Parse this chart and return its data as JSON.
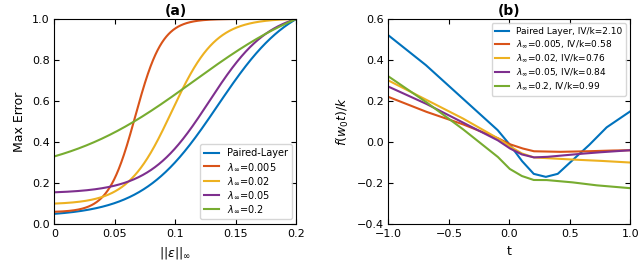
{
  "panel_a": {
    "title": "(a)",
    "xlabel": "$||\\epsilon||_\\infty$",
    "ylabel": "Max Error",
    "xlim": [
      0,
      0.2
    ],
    "ylim": [
      0,
      1.0
    ],
    "xticks": [
      0,
      0.05,
      0.1,
      0.15,
      0.2
    ],
    "yticks": [
      0,
      0.2,
      0.4,
      0.6,
      0.8,
      1.0
    ],
    "lines": [
      {
        "label": "Paired-Layer",
        "color": "#0072BD",
        "shift": 0.135,
        "steepness": 32,
        "ystart": 0.05,
        "yend": 1.0
      },
      {
        "label": "$\\lambda_\\infty$=0.005",
        "color": "#D95319",
        "shift": 0.067,
        "steepness": 90,
        "ystart": 0.06,
        "yend": 1.0
      },
      {
        "label": "$\\lambda_\\infty$=0.02",
        "color": "#EDB120",
        "shift": 0.097,
        "steepness": 55,
        "ystart": 0.1,
        "yend": 1.0
      },
      {
        "label": "$\\lambda_\\infty$=0.05",
        "color": "#7E2F8E",
        "shift": 0.128,
        "steepness": 40,
        "ystart": 0.155,
        "yend": 1.0
      },
      {
        "label": "$\\lambda_\\infty$=0.2",
        "color": "#77AC30",
        "shift": 0.115,
        "steepness": 18,
        "ystart": 0.33,
        "yend": 1.0
      }
    ]
  },
  "panel_b": {
    "title": "(b)",
    "xlabel": "t",
    "ylabel": "$f(w_0 t)/k$",
    "xlim": [
      -1,
      1
    ],
    "ylim": [
      -0.4,
      0.6
    ],
    "xticks": [
      -1,
      -0.5,
      0,
      0.5,
      1
    ],
    "yticks": [
      -0.4,
      -0.2,
      0,
      0.2,
      0.4,
      0.6
    ],
    "lines": [
      {
        "label": "Paired Layer, IV/k=2.10",
        "color": "#0072BD",
        "id": 0,
        "t_pts": [
          -1.0,
          -0.7,
          -0.4,
          -0.1,
          0.0,
          0.1,
          0.2,
          0.3,
          0.4,
          0.5,
          0.65,
          0.8,
          1.0
        ],
        "y_pts": [
          0.52,
          0.38,
          0.22,
          0.06,
          -0.01,
          -0.09,
          -0.155,
          -0.17,
          -0.155,
          -0.1,
          -0.02,
          0.07,
          0.15
        ]
      },
      {
        "label": "$\\lambda_\\infty$=0.005, IV/k=0.58",
        "color": "#D95319",
        "id": 1,
        "t_pts": [
          -1.0,
          -0.7,
          -0.4,
          -0.1,
          0.0,
          0.1,
          0.2,
          0.4,
          0.6,
          0.8,
          1.0
        ],
        "y_pts": [
          0.22,
          0.15,
          0.09,
          0.02,
          -0.01,
          -0.03,
          -0.045,
          -0.048,
          -0.046,
          -0.042,
          -0.04
        ]
      },
      {
        "label": "$\\lambda_\\infty$=0.02, IV/k=0.76",
        "color": "#EDB120",
        "id": 2,
        "t_pts": [
          -1.0,
          -0.7,
          -0.4,
          -0.1,
          0.0,
          0.1,
          0.2,
          0.3,
          0.5,
          0.7,
          1.0
        ],
        "y_pts": [
          0.3,
          0.21,
          0.12,
          0.02,
          -0.02,
          -0.055,
          -0.075,
          -0.078,
          -0.085,
          -0.09,
          -0.1
        ]
      },
      {
        "label": "$\\lambda_\\infty$=0.05, IV/k=0.84",
        "color": "#7E2F8E",
        "id": 3,
        "t_pts": [
          -1.0,
          -0.7,
          -0.4,
          -0.1,
          0.0,
          0.1,
          0.2,
          0.3,
          0.5,
          0.7,
          1.0
        ],
        "y_pts": [
          0.27,
          0.19,
          0.1,
          0.01,
          -0.03,
          -0.06,
          -0.075,
          -0.073,
          -0.062,
          -0.052,
          -0.04
        ]
      },
      {
        "label": "$\\lambda_\\infty$=0.2, IV/k=0.99",
        "color": "#77AC30",
        "id": 4,
        "t_pts": [
          -1.0,
          -0.7,
          -0.4,
          -0.1,
          0.0,
          0.1,
          0.2,
          0.3,
          0.5,
          0.7,
          1.0
        ],
        "y_pts": [
          0.32,
          0.2,
          0.07,
          -0.07,
          -0.13,
          -0.165,
          -0.185,
          -0.185,
          -0.195,
          -0.21,
          -0.225
        ]
      }
    ]
  }
}
